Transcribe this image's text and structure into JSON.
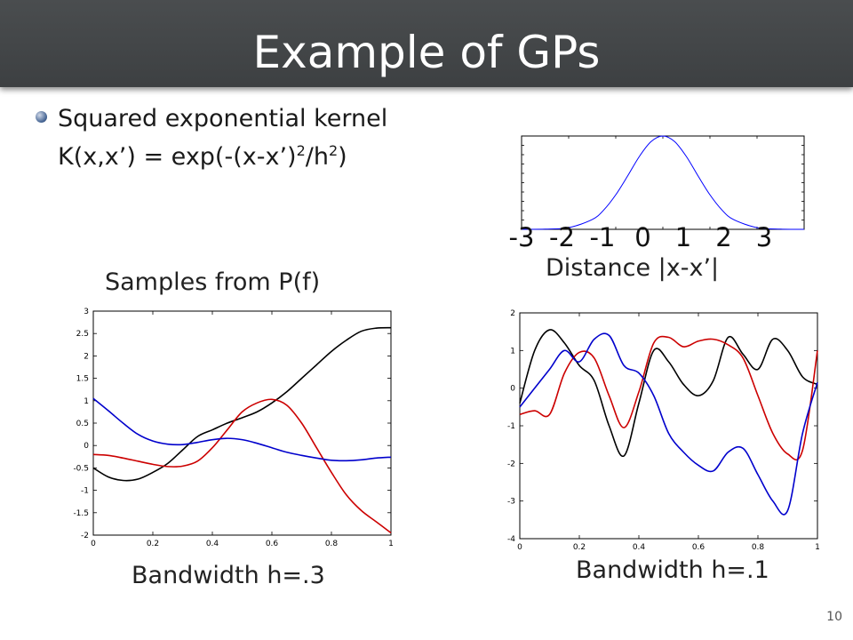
{
  "slide": {
    "title": "Example of GPs",
    "bullet": "Squared exponential kernel",
    "formula_main": "K(x,x’) = exp(-(x-x’)",
    "formula_sup1": "2",
    "formula_mid": "/h",
    "formula_sup2": "2",
    "formula_end": ")",
    "samples_label": "Samples from P(f)",
    "distance_label": "Distance |x-x’|",
    "bandwidth_left": "Bandwidth h=.3",
    "bandwidth_right": "Bandwidth h=.1",
    "page_number": "10"
  },
  "kernel_ticks": [
    "-3",
    "-2",
    "-1",
    "0",
    "1",
    "2",
    "3"
  ],
  "chart_data": [
    {
      "type": "line",
      "title": "",
      "xlabel": "Distance |x-x’|",
      "ylabel": "",
      "xlim": [
        -3,
        3
      ],
      "ylim": [
        0,
        1
      ],
      "grid": false,
      "series": [
        {
          "color": "#0000ff",
          "x": [
            -3,
            -2.5,
            -2,
            -1.5,
            -1.25,
            -1,
            -0.75,
            -0.5,
            -0.25,
            0,
            0.25,
            0.5,
            0.75,
            1,
            1.25,
            1.5,
            2,
            2.5,
            3
          ],
          "y": [
            0.0001,
            0.0019,
            0.018,
            0.105,
            0.21,
            0.37,
            0.57,
            0.78,
            0.94,
            1,
            0.94,
            0.78,
            0.57,
            0.37,
            0.21,
            0.105,
            0.018,
            0.0019,
            0.0001
          ]
        }
      ]
    },
    {
      "type": "line",
      "title": "Bandwidth h=.3",
      "xlabel": "",
      "ylabel": "",
      "xlim": [
        0,
        1
      ],
      "ylim": [
        -2,
        3
      ],
      "xticks": [
        "0",
        "0.2",
        "0.4",
        "0.6",
        "0.8",
        "1"
      ],
      "yticks": [
        "-2",
        "-1.5",
        "-1",
        "-0.5",
        "0",
        "0.5",
        "1",
        "1.5",
        "2",
        "2.5",
        "3"
      ],
      "grid": false,
      "series": [
        {
          "color": "#000000",
          "x": [
            0,
            0.05,
            0.1,
            0.15,
            0.2,
            0.25,
            0.3,
            0.35,
            0.4,
            0.45,
            0.5,
            0.55,
            0.6,
            0.65,
            0.7,
            0.75,
            0.8,
            0.85,
            0.9,
            0.95,
            1
          ],
          "y": [
            -0.5,
            -0.7,
            -0.78,
            -0.75,
            -0.6,
            -0.4,
            -0.1,
            0.2,
            0.35,
            0.5,
            0.62,
            0.75,
            0.95,
            1.2,
            1.5,
            1.8,
            2.1,
            2.35,
            2.55,
            2.62,
            2.63
          ]
        },
        {
          "color": "#cc0000",
          "x": [
            0,
            0.05,
            0.1,
            0.15,
            0.2,
            0.25,
            0.3,
            0.35,
            0.4,
            0.45,
            0.5,
            0.55,
            0.6,
            0.65,
            0.7,
            0.75,
            0.8,
            0.85,
            0.9,
            0.95,
            1
          ],
          "y": [
            -0.2,
            -0.22,
            -0.28,
            -0.35,
            -0.42,
            -0.47,
            -0.46,
            -0.35,
            -0.05,
            0.35,
            0.75,
            0.95,
            1.03,
            0.9,
            0.5,
            -0.05,
            -0.6,
            -1.1,
            -1.45,
            -1.7,
            -1.95
          ]
        },
        {
          "color": "#0000cc",
          "x": [
            0,
            0.05,
            0.1,
            0.15,
            0.2,
            0.25,
            0.3,
            0.35,
            0.4,
            0.45,
            0.5,
            0.55,
            0.6,
            0.65,
            0.7,
            0.75,
            0.8,
            0.85,
            0.9,
            0.95,
            1
          ],
          "y": [
            1.05,
            0.78,
            0.5,
            0.25,
            0.1,
            0.03,
            0.02,
            0.07,
            0.13,
            0.16,
            0.13,
            0.05,
            -0.05,
            -0.15,
            -0.22,
            -0.28,
            -0.33,
            -0.34,
            -0.32,
            -0.28,
            -0.26
          ]
        }
      ]
    },
    {
      "type": "line",
      "title": "Bandwidth h=.1",
      "xlabel": "",
      "ylabel": "",
      "xlim": [
        0,
        1
      ],
      "ylim": [
        -4,
        2
      ],
      "xticks": [
        "0",
        "0.2",
        "0.4",
        "0.6",
        "0.8",
        "1"
      ],
      "yticks": [
        "-4",
        "-3",
        "-2",
        "-1",
        "0",
        "1",
        "2"
      ],
      "grid": false,
      "series": [
        {
          "color": "#000000",
          "x": [
            0,
            0.05,
            0.1,
            0.15,
            0.2,
            0.25,
            0.3,
            0.35,
            0.4,
            0.45,
            0.5,
            0.55,
            0.6,
            0.65,
            0.7,
            0.75,
            0.8,
            0.85,
            0.9,
            0.95,
            1
          ],
          "y": [
            -0.4,
            1.0,
            1.55,
            1.2,
            0.6,
            0.2,
            -1.0,
            -1.8,
            -0.4,
            1.0,
            0.7,
            0.1,
            -0.2,
            0.2,
            1.35,
            0.9,
            0.5,
            1.3,
            1.0,
            0.3,
            0.1
          ]
        },
        {
          "color": "#cc0000",
          "x": [
            0,
            0.05,
            0.1,
            0.15,
            0.2,
            0.25,
            0.3,
            0.35,
            0.4,
            0.45,
            0.5,
            0.55,
            0.6,
            0.65,
            0.7,
            0.75,
            0.8,
            0.85,
            0.9,
            0.95,
            1
          ],
          "y": [
            -0.7,
            -0.6,
            -0.7,
            0.4,
            0.95,
            0.8,
            -0.2,
            -1.05,
            -0.1,
            1.2,
            1.35,
            1.1,
            1.25,
            1.3,
            1.15,
            0.8,
            -0.2,
            -1.2,
            -1.75,
            -1.65,
            1.0
          ]
        },
        {
          "color": "#0000cc",
          "x": [
            0,
            0.05,
            0.1,
            0.15,
            0.2,
            0.25,
            0.3,
            0.35,
            0.4,
            0.45,
            0.5,
            0.55,
            0.6,
            0.65,
            0.7,
            0.75,
            0.8,
            0.85,
            0.9,
            0.95,
            1
          ],
          "y": [
            -0.5,
            0.0,
            0.5,
            1.0,
            0.7,
            1.3,
            1.4,
            0.6,
            0.4,
            -0.2,
            -1.2,
            -1.7,
            -2.05,
            -2.2,
            -1.7,
            -1.6,
            -2.3,
            -3.0,
            -3.25,
            -1.2,
            0.15
          ]
        }
      ]
    }
  ]
}
